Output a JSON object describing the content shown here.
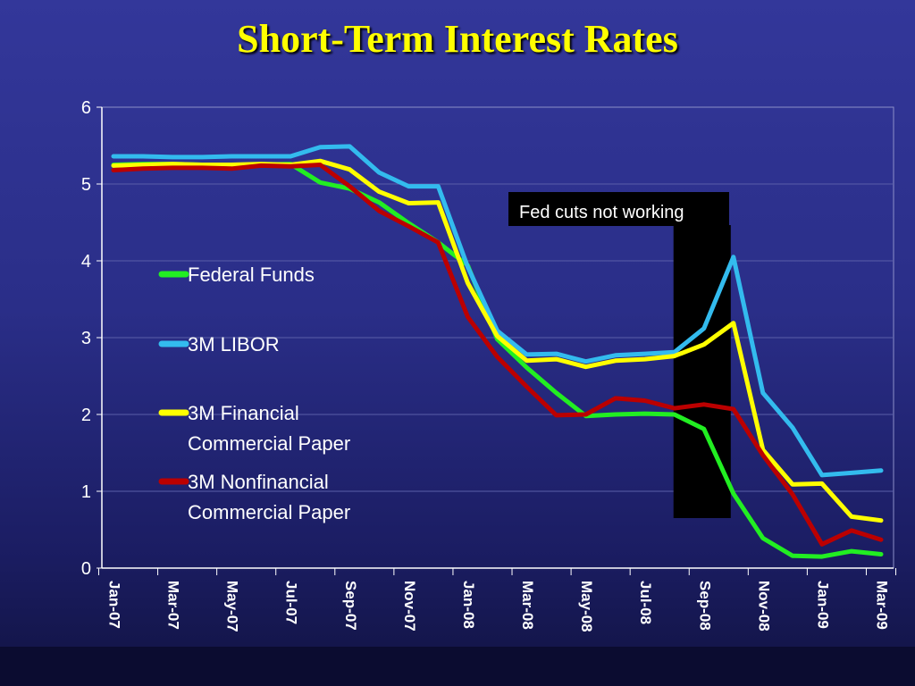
{
  "slide": {
    "title": "Short-Term Interest Rates"
  },
  "chart_data": {
    "type": "line",
    "title": "",
    "xlabel": "",
    "ylabel": "",
    "ylim": [
      0,
      6
    ],
    "y_ticks": [
      "0",
      "1",
      "2",
      "3",
      "4",
      "5",
      "6"
    ],
    "x": [
      "Jan-07",
      "Feb-07",
      "Mar-07",
      "Apr-07",
      "May-07",
      "Jun-07",
      "Jul-07",
      "Aug-07",
      "Sep-07",
      "Oct-07",
      "Nov-07",
      "Dec-07",
      "Jan-08",
      "Feb-08",
      "Mar-08",
      "Apr-08",
      "May-08",
      "Jun-08",
      "Jul-08",
      "Aug-08",
      "Sep-08",
      "Oct-08",
      "Nov-08",
      "Dec-08",
      "Jan-09",
      "Feb-09",
      "Mar-09"
    ],
    "x_tick_labels": [
      "Jan-07",
      "Mar-07",
      "May-07",
      "Jul-07",
      "Sep-07",
      "Nov-07",
      "Jan-08",
      "Mar-08",
      "May-08",
      "Jul-08",
      "Sep-08",
      "Nov-08",
      "Jan-09",
      "Mar-09"
    ],
    "grid": "horizontal",
    "legend_position": "left",
    "series": [
      {
        "name": "Federal Funds",
        "color": "#22ee22",
        "values": [
          5.25,
          5.26,
          5.26,
          5.25,
          5.25,
          5.25,
          5.26,
          5.02,
          4.94,
          4.76,
          4.49,
          4.24,
          3.94,
          2.98,
          2.61,
          2.28,
          1.98,
          2.0,
          2.01,
          2.0,
          1.81,
          0.97,
          0.39,
          0.16,
          0.15,
          0.22,
          0.18
        ]
      },
      {
        "name": "3M LIBOR",
        "color": "#33bbee",
        "values": [
          5.36,
          5.36,
          5.35,
          5.35,
          5.36,
          5.36,
          5.36,
          5.48,
          5.49,
          5.15,
          4.97,
          4.97,
          3.92,
          3.09,
          2.78,
          2.79,
          2.69,
          2.77,
          2.79,
          2.81,
          3.12,
          4.05,
          2.28,
          1.83,
          1.21,
          1.24,
          1.27
        ]
      },
      {
        "name": "3M Financial Commercial Paper",
        "color": "#ffff00",
        "values": [
          5.24,
          5.25,
          5.26,
          5.25,
          5.25,
          5.26,
          5.25,
          5.3,
          5.19,
          4.9,
          4.75,
          4.76,
          3.71,
          3.02,
          2.7,
          2.72,
          2.62,
          2.7,
          2.72,
          2.76,
          2.91,
          3.19,
          1.54,
          1.09,
          1.1,
          0.67,
          0.62
        ]
      },
      {
        "name": "3M Nonfinancial Commercial Paper",
        "color": "#bb0000",
        "values": [
          5.18,
          5.2,
          5.21,
          5.21,
          5.2,
          5.24,
          5.23,
          5.25,
          4.97,
          4.65,
          4.45,
          4.24,
          3.27,
          2.75,
          2.36,
          1.99,
          2.0,
          2.21,
          2.18,
          2.08,
          2.13,
          2.07,
          1.47,
          0.96,
          0.31,
          0.49,
          0.37
        ]
      }
    ],
    "legend": [
      {
        "lines": [
          "Federal Funds"
        ]
      },
      {
        "lines": [
          "3M LIBOR"
        ]
      },
      {
        "lines": [
          "3M Financial",
          "Commercial Paper"
        ]
      },
      {
        "lines": [
          "3M Nonfinancial",
          "Commercial Paper"
        ]
      }
    ],
    "annotation": {
      "text": "Fed cuts not working",
      "from": "Aug-08",
      "to": "Oct-08",
      "color": "#000000"
    }
  }
}
